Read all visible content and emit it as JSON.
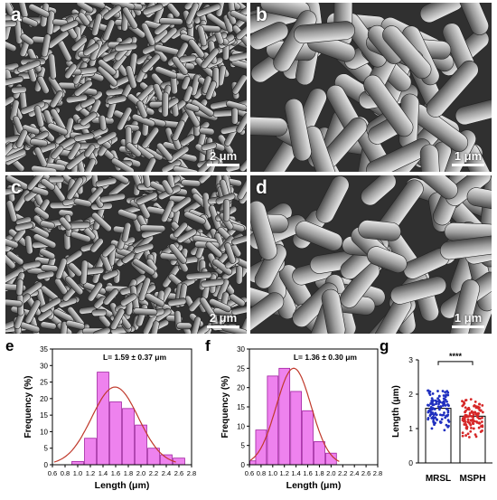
{
  "panels": [
    {
      "label": "a",
      "scale": "2 μm"
    },
    {
      "label": "b",
      "scale": "1 μm"
    },
    {
      "label": "c",
      "scale": "2 μm"
    },
    {
      "label": "d",
      "scale": "1 μm"
    }
  ],
  "chart_labels": {
    "e": "e",
    "f": "f",
    "g": "g"
  },
  "chart_data": [
    {
      "type": "bar",
      "annotation": "L= 1.59 ± 0.37 μm",
      "xlabel": "Length (μm)",
      "ylabel": "Frequency (%)",
      "xlim": [
        0.6,
        2.8
      ],
      "ylim": [
        0,
        35
      ],
      "xticks": [
        "0.6",
        "0.8",
        "1.0",
        "1.2",
        "1.4",
        "1.6",
        "1.8",
        "2.0",
        "2.2",
        "2.4",
        "2.6",
        "2.8"
      ],
      "yticks": [
        "0",
        "5",
        "10",
        "15",
        "20",
        "25",
        "30",
        "35"
      ],
      "bin_centers": [
        1.0,
        1.2,
        1.4,
        1.6,
        1.8,
        2.0,
        2.2,
        2.4,
        2.6
      ],
      "values": [
        1,
        8,
        28,
        19,
        17,
        12,
        5,
        3,
        2
      ],
      "fit": {
        "type": "gaussian",
        "mean": 1.59,
        "sd": 0.37,
        "peak": 23.5
      },
      "bar_color": "#ee82ee",
      "fit_color": "#c0392b"
    },
    {
      "type": "bar",
      "annotation": "L= 1.36 ± 0.30 μm",
      "xlabel": "Length (μm)",
      "ylabel": "Frequency (%)",
      "xlim": [
        0.6,
        2.8
      ],
      "ylim": [
        0,
        30
      ],
      "xticks": [
        "0.6",
        "0.8",
        "1.0",
        "1.2",
        "1.4",
        "1.6",
        "1.8",
        "2.0",
        "2.2",
        "2.4",
        "2.6",
        "2.8"
      ],
      "yticks": [
        "0",
        "5",
        "10",
        "15",
        "20",
        "25",
        "30"
      ],
      "bin_centers": [
        0.8,
        1.0,
        1.2,
        1.4,
        1.6,
        1.8,
        2.0
      ],
      "values": [
        9,
        23,
        25,
        19,
        14,
        6,
        3
      ],
      "extra_bars": [
        {
          "x": 0.7,
          "value": 1
        }
      ],
      "fit": {
        "type": "gaussian",
        "mean": 1.36,
        "sd": 0.3,
        "peak": 25
      },
      "bar_color": "#ee82ee",
      "fit_color": "#c0392b"
    },
    {
      "type": "scatter",
      "ylabel": "Length (μm)",
      "ylim": [
        0,
        3
      ],
      "yticks": [
        "0",
        "1",
        "2",
        "3"
      ],
      "categories": [
        "MRSL",
        "MSPH"
      ],
      "bar_means": [
        1.59,
        1.36
      ],
      "series_colors": [
        "#1f2fbf",
        "#d62728"
      ],
      "significance": "****"
    }
  ]
}
